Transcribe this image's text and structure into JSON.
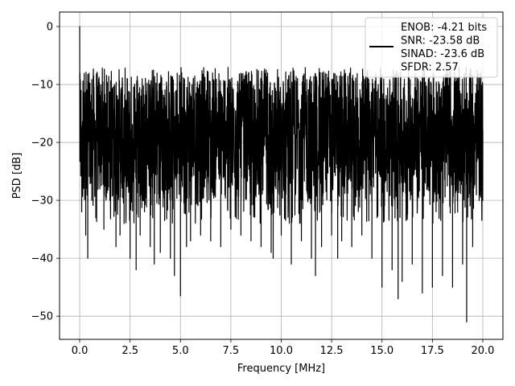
{
  "chart_data": {
    "type": "line",
    "title": "",
    "xlabel": "Frequency [MHz]",
    "ylabel": "PSD [dB]",
    "xlim": [
      -1,
      21
    ],
    "ylim": [
      -54,
      2.5
    ],
    "grid": true,
    "legend_placement": "top-right",
    "xticks": [
      0.0,
      2.5,
      5.0,
      7.5,
      10.0,
      12.5,
      15.0,
      17.5,
      20.0
    ],
    "xtick_labels": [
      "0.0",
      "2.5",
      "5.0",
      "7.5",
      "10.0",
      "12.5",
      "15.0",
      "17.5",
      "20.0"
    ],
    "yticks": [
      0,
      -10,
      -20,
      -30,
      -40,
      -50
    ],
    "ytick_labels": [
      "0",
      "−10",
      "−20",
      "−30",
      "−40",
      "−50"
    ],
    "series": [
      {
        "name": "ENOB: -4.21 bits\nSNR: -23.58 dB\nSINAD: -23.6 dB\nSFDR: 2.57",
        "color": "#000000",
        "noise_floor_band_db": [
          -26,
          -7
        ],
        "x": [
          0.0,
          0.05,
          0.1,
          0.2,
          0.3,
          0.4,
          0.5,
          0.6,
          0.8,
          1.0,
          1.2,
          1.5,
          1.8,
          2.0,
          2.2,
          2.5,
          2.8,
          3.0,
          3.5,
          3.7,
          4.0,
          4.5,
          4.7,
          5.0,
          5.3,
          5.5,
          6.0,
          6.5,
          7.0,
          7.5,
          8.0,
          8.5,
          9.0,
          9.5,
          9.6,
          10.0,
          10.5,
          11.0,
          11.5,
          11.7,
          12.0,
          12.5,
          12.8,
          13.0,
          13.5,
          14.0,
          14.5,
          15.0,
          15.5,
          15.8,
          16.0,
          16.5,
          17.0,
          17.5,
          18.0,
          18.5,
          19.0,
          19.2,
          19.5,
          20.0
        ],
        "y": [
          0,
          -20,
          -32,
          -15,
          -36,
          -40,
          -22,
          -30,
          -33,
          -28,
          -35,
          -30,
          -38,
          -36,
          -34,
          -40,
          -42,
          -36,
          -38,
          -41,
          -39,
          -40,
          -43,
          -46.5,
          -38,
          -37,
          -36,
          -37,
          -38,
          -35,
          -36,
          -37,
          -38,
          -39,
          -40,
          -36,
          -41,
          -37,
          -40,
          -43,
          -38,
          -36,
          -40,
          -37,
          -38,
          -36,
          -40,
          -45,
          -42,
          -47,
          -44,
          -41,
          -46,
          -45,
          -43,
          -45,
          -41,
          -51,
          -38,
          -30
        ]
      }
    ]
  }
}
